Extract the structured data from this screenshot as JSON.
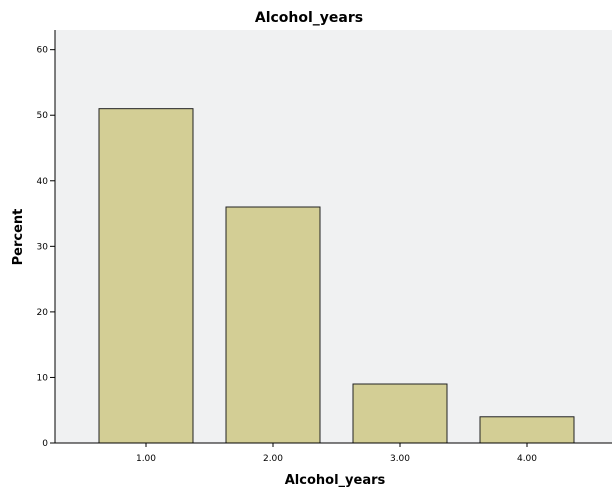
{
  "chart_data": {
    "type": "bar",
    "title": "Alcohol_years",
    "xlabel": "Alcohol_years",
    "ylabel": "Percent",
    "categories": [
      "1.00",
      "2.00",
      "3.00",
      "4.00"
    ],
    "values": [
      51,
      36,
      9,
      4
    ],
    "ylim": [
      0,
      63
    ],
    "yticks": [
      "0",
      "10",
      "20",
      "30",
      "40",
      "50",
      "60"
    ],
    "grid": false,
    "legend": "none",
    "colors": {
      "bar_fill": "#d3ce95",
      "bar_stroke": "#222222",
      "plot_background": "#f0f1f2",
      "axis": "#000000"
    }
  }
}
